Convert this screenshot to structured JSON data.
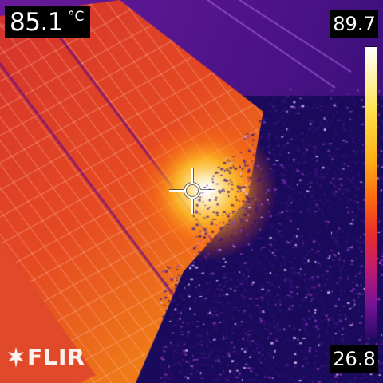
{
  "readout": {
    "spot_temperature": "85.1",
    "unit": "°C"
  },
  "scale": {
    "max": "89.7",
    "min": "26.8"
  },
  "brand": {
    "logo_text": "FLIR"
  },
  "colors": {
    "hot_spot": "#ffffff",
    "panel": "#e2402a",
    "vegetation": "#1a0a5c"
  },
  "icons": {
    "crosshair": "spot-meter-crosshair-icon",
    "logo": "flir-logo-icon"
  }
}
